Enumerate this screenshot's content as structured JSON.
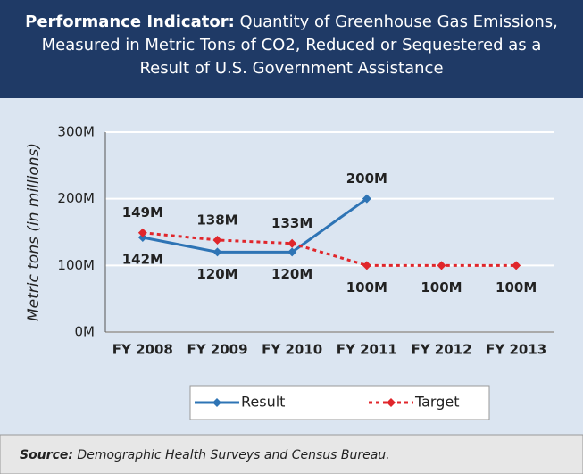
{
  "chart_data": {
    "type": "line",
    "title_label": "Performance Indicator:",
    "title": "Quantity of Greenhouse Gas Emissions, Measured in Metric Tons of CO2, Reduced or Sequestered as a Result of U.S. Government Assistance",
    "y_label": "Metric tons (in millions)",
    "categories": [
      "FY 2008",
      "FY 2009",
      "FY 2010",
      "FY 2011",
      "FY 2012",
      "FY 2013"
    ],
    "series": [
      {
        "name": "Result",
        "color": "#2e74b5",
        "dash": false,
        "values": [
          142,
          120,
          120,
          200,
          null,
          null
        ],
        "value_labels": [
          "142M",
          "120M",
          "120M",
          "200M",
          null,
          null
        ]
      },
      {
        "name": "Target",
        "color": "#e0262b",
        "dash": true,
        "values": [
          149,
          138,
          133,
          100,
          100,
          100
        ],
        "value_labels": [
          "149M",
          "138M",
          "133M",
          "100M",
          "100M",
          "100M"
        ]
      }
    ],
    "ylim": [
      0,
      300
    ],
    "yticks": [
      {
        "value": 0,
        "label": "0M"
      },
      {
        "value": 100,
        "label": "100M"
      },
      {
        "value": 200,
        "label": "200M"
      },
      {
        "value": 300,
        "label": "300M"
      }
    ],
    "grid": true,
    "legend": "bottom",
    "source_label": "Source:",
    "source": "Demographic Health Surveys and Census Bureau."
  }
}
